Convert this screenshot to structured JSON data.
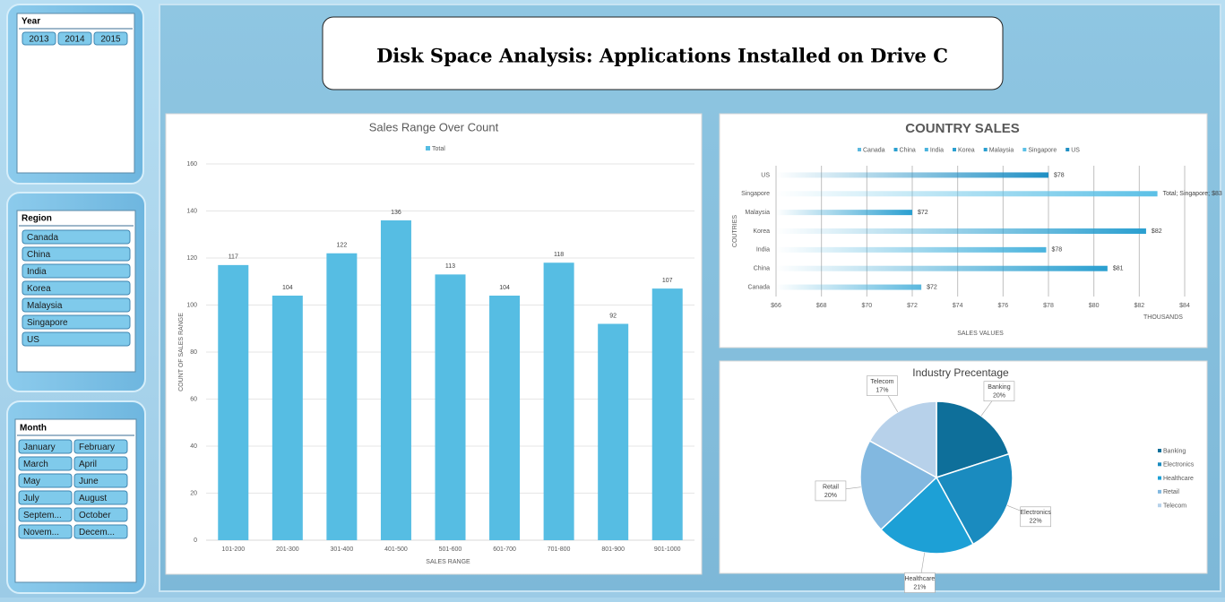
{
  "header": {
    "title": "Disk Space Analysis: Applications Installed on Drive C"
  },
  "slicers": [
    {
      "title": "Year",
      "items": [
        "2013",
        "2014",
        "2015"
      ]
    },
    {
      "title": "Region",
      "items": [
        "Canada",
        "China",
        "India",
        "Korea",
        "Malaysia",
        "Singapore",
        "US"
      ]
    },
    {
      "title": "Month",
      "items": [
        "January",
        "February",
        "March",
        "April",
        "May",
        "June",
        "July",
        "August",
        "Septem...",
        "October",
        "Novem...",
        "Decem..."
      ]
    }
  ],
  "chart_data": [
    {
      "type": "bar",
      "title": "Sales Range Over Count",
      "x_label": "SALES RANGE",
      "y_label": "COUNT OF SALES RANGE",
      "categories": [
        "101-200",
        "201-300",
        "301-400",
        "401-500",
        "501-600",
        "601-700",
        "701-800",
        "801-900",
        "901-1000"
      ],
      "series": [
        {
          "name": "Total",
          "color": "#56bde3",
          "values": [
            117,
            104,
            122,
            136,
            113,
            104,
            118,
            92,
            107
          ]
        }
      ],
      "ylim": [
        0,
        160
      ],
      "yticks": [
        0,
        20,
        40,
        60,
        80,
        100,
        120,
        140,
        160
      ],
      "grid": true,
      "data_labels": true
    },
    {
      "type": "hbar",
      "title": "COUNTRY SALES",
      "x_label": "SALES VALUES",
      "y_label": "COUTRIES",
      "x_unit": "THOUSANDS",
      "categories": [
        "Canada",
        "China",
        "India",
        "Korea",
        "Malaysia",
        "Singapore",
        "US"
      ],
      "colors": [
        "#5bb8de",
        "#2a9fd0",
        "#4ab3dd",
        "#2a9fd0",
        "#2a9fd0",
        "#5bc0e6",
        "#1f8fc4"
      ],
      "values": [
        72.4,
        80.6,
        77.9,
        82.3,
        72.0,
        82.8,
        78.0
      ],
      "value_labels": [
        "$72",
        "$81",
        "$78",
        "$82",
        "$72",
        "Total; Singapore; $83",
        "$78"
      ],
      "xlim": [
        66,
        84
      ],
      "xticks": [
        {
          "value": 66,
          "label": "$66"
        },
        {
          "value": 68,
          "label": "$68"
        },
        {
          "value": 70,
          "label": "$70"
        },
        {
          "value": 72,
          "label": "$72"
        },
        {
          "value": 74,
          "label": "$74"
        },
        {
          "value": 76,
          "label": "$76"
        },
        {
          "value": 78,
          "label": "$78"
        },
        {
          "value": 80,
          "label": "$80"
        },
        {
          "value": 82,
          "label": "$82"
        },
        {
          "value": 84,
          "label": "$84"
        }
      ],
      "grid": true
    },
    {
      "type": "pie",
      "title": "Industry Precentage",
      "categories": [
        "Banking",
        "Electronics",
        "Healthcare",
        "Retail",
        "Telecom"
      ],
      "values": [
        20,
        22,
        21,
        20,
        17
      ],
      "value_labels": [
        "20%",
        "22%",
        "21%",
        "20%",
        "17%"
      ],
      "colors": [
        "#0e6f9a",
        "#1a8bbf",
        "#1da0d6",
        "#82b8e0",
        "#b7d1ea"
      ]
    }
  ]
}
